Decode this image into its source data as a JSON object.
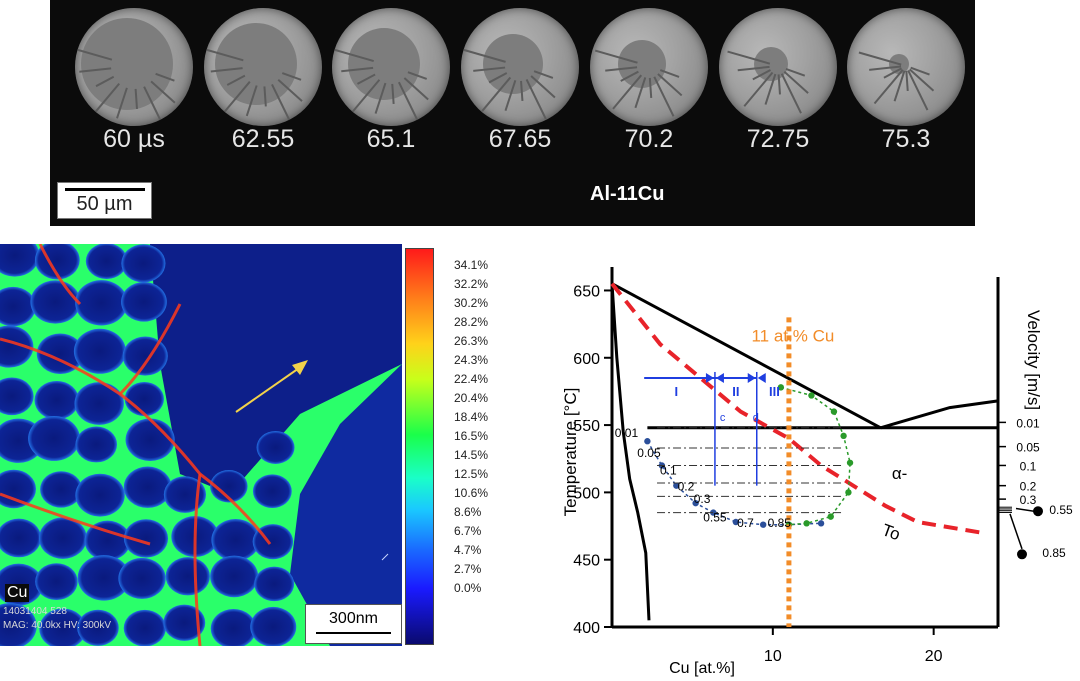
{
  "high_speed_panel": {
    "frames": [
      {
        "label": "60 µs"
      },
      {
        "label": "62.55"
      },
      {
        "label": "65.1"
      },
      {
        "label": "67.65"
      },
      {
        "label": "70.2"
      },
      {
        "label": "72.75"
      },
      {
        "label": "75.3"
      }
    ],
    "scale_bar": "50 µm",
    "alloy": "Al-11Cu"
  },
  "eds_map": {
    "element": "Cu",
    "image_id": "14031404 528",
    "mag_line": "MAG: 40.0kx  HV: 300kV",
    "scale_bar": "300nm",
    "colorbar_labels": [
      "34.1%",
      "32.2%",
      "30.2%",
      "28.2%",
      "26.3%",
      "24.3%",
      "22.4%",
      "20.4%",
      "18.4%",
      "16.5%",
      "14.5%",
      "12.5%",
      "10.6%",
      "8.6%",
      "6.7%",
      "4.7%",
      "2.7%",
      "0.0%"
    ],
    "colors": {
      "background": "#0a1a7e",
      "boundary_high": "#ff3a1a",
      "boundary_mid": "#ffe41a",
      "boundary_low": "#2aff6a",
      "arrow": "#f2d24a"
    }
  },
  "chart_data": {
    "type": "line",
    "xlabel": "Cu [at.%]",
    "ylabel": "Temperature [°C]",
    "ylabel_right": "Velocity [m/s]",
    "x_ticks": [
      "10",
      "20"
    ],
    "y_ticks": [
      "400",
      "450",
      "500",
      "550",
      "600",
      "650"
    ],
    "xlim": [
      0,
      24
    ],
    "ylim": [
      400,
      660
    ],
    "composition_label": "11 at.% Cu",
    "composition_x": 11,
    "to_label_line1": "α-",
    "to_label_line2": "To",
    "regions": [
      {
        "label": "I"
      },
      {
        "label": "II"
      },
      {
        "label": "III"
      }
    ],
    "region_markers": [
      "c",
      "d"
    ],
    "velocity_left_labels": [
      "0.01",
      "0.05",
      "0.1",
      "0.2",
      "0.3",
      "0.55",
      "0.7",
      "0.85"
    ],
    "velocity_right_labels": [
      "0.01",
      "0.05",
      "0.1",
      "0.2",
      "0.3",
      "0.55",
      "0.85"
    ],
    "series": [
      {
        "values_T": [
          655,
          600,
          545,
          510,
          485,
          455,
          405
        ],
        "values_x": [
          0,
          0.3,
          0.7,
          1.1,
          1.6,
          2.1,
          2.3
        ]
      },
      {
        "values_T": [
          655,
          548
        ],
        "values_x": [
          0,
          16.7
        ]
      },
      {
        "values_T": [
          548,
          563,
          568
        ],
        "values_x": [
          16.7,
          21,
          24
        ]
      },
      {
        "values_T": [
          655,
          610,
          580,
          560,
          540,
          520,
          505,
          490,
          478,
          470
        ],
        "values_x": [
          0,
          3,
          6,
          8,
          11,
          13,
          15,
          17,
          19,
          23
        ]
      },
      {
        "values_T": [
          538,
          520,
          505,
          492,
          485,
          478,
          476,
          476,
          477
        ],
        "values_x": [
          2.2,
          3.1,
          4.0,
          5.2,
          6.3,
          7.7,
          9.4,
          11,
          13
        ]
      },
      {
        "values_T": [
          578,
          572,
          560,
          542,
          522,
          500,
          482,
          477,
          476
        ],
        "values_x": [
          10.5,
          12.4,
          13.8,
          14.4,
          14.8,
          14.7,
          13.6,
          12.1,
          11
        ]
      }
    ],
    "colors": {
      "phase_lines": "#000000",
      "to_curve": "#e8232a",
      "composition_line": "#f28c28",
      "liquidus_dots": "#2a9a2a",
      "solidus_dots": "#2b4f9a",
      "regions": "#1f3ee0"
    }
  }
}
